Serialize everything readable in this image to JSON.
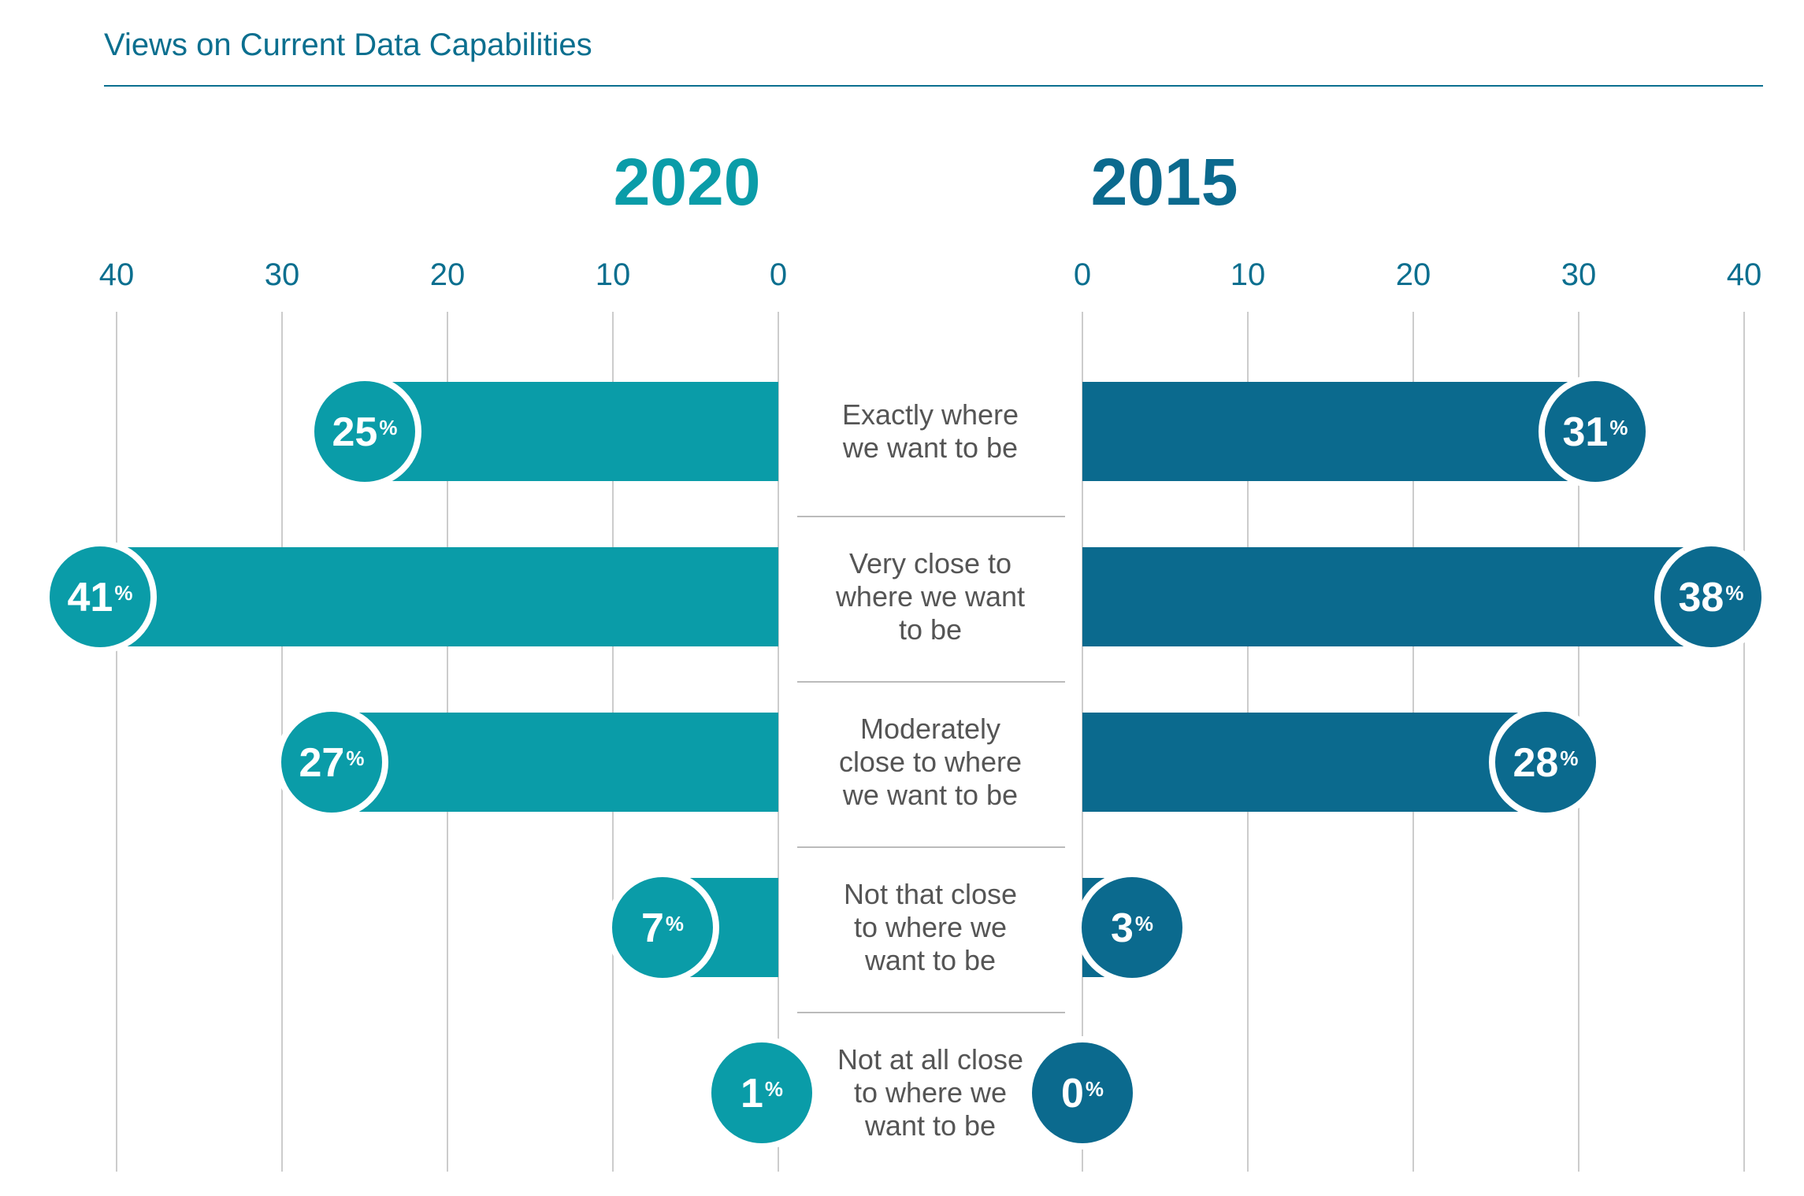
{
  "chart_data": {
    "type": "bar",
    "title": "Views on Current Data Capabilities",
    "categories": [
      [
        "Exactly where",
        "we want to be"
      ],
      [
        "Very close to",
        "where we want",
        "to be"
      ],
      [
        "Moderately",
        "close to where",
        "we want to be"
      ],
      [
        "Not that close",
        "to where we",
        "want to be"
      ],
      [
        "Not at all close",
        "to where we",
        "want to be"
      ]
    ],
    "series": [
      {
        "name": "2020",
        "values": [
          25,
          41,
          27,
          7,
          1
        ],
        "color": "#0a9ca8"
      },
      {
        "name": "2015",
        "values": [
          31,
          38,
          28,
          3,
          0
        ],
        "color": "#0b6a8e"
      }
    ],
    "xlim": [
      0,
      40
    ],
    "ticks": [
      0,
      10,
      20,
      30,
      40
    ],
    "tick_labels": [
      "0",
      "10",
      "20",
      "30",
      "40"
    ],
    "value_suffix": "%",
    "grid": true
  }
}
